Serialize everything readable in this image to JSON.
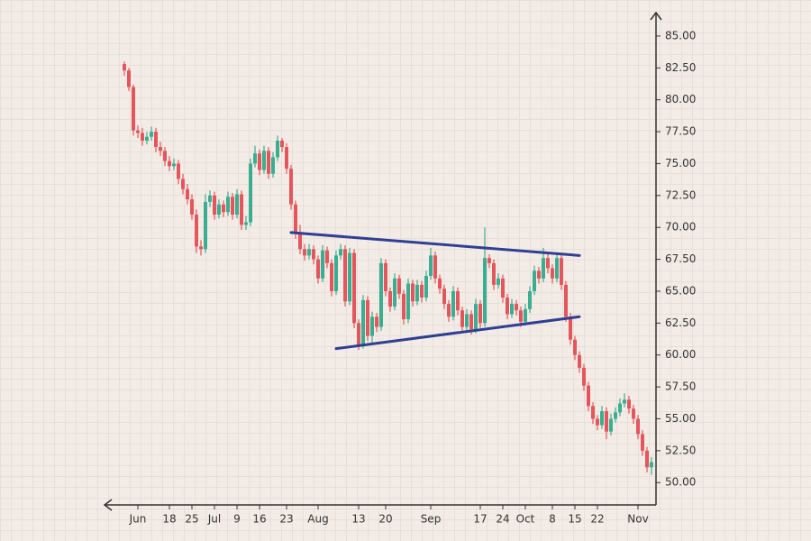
{
  "chart_data": {
    "type": "candlestick",
    "categories": [
      null,
      null,
      null,
      "Jun",
      null,
      null,
      null,
      null,
      null,
      null,
      "18",
      null,
      null,
      null,
      null,
      "25",
      null,
      null,
      null,
      null,
      "Jul",
      null,
      null,
      null,
      null,
      "9",
      null,
      null,
      null,
      null,
      "16",
      null,
      null,
      null,
      null,
      null,
      "23",
      null,
      null,
      null,
      null,
      null,
      null,
      "Aug",
      null,
      null,
      null,
      null,
      null,
      null,
      null,
      null,
      "13",
      null,
      null,
      null,
      null,
      null,
      "20",
      null,
      null,
      null,
      null,
      null,
      null,
      null,
      null,
      null,
      "Sep",
      null,
      null,
      null,
      null,
      null,
      null,
      null,
      null,
      null,
      null,
      "17",
      null,
      null,
      null,
      null,
      "24",
      null,
      null,
      null,
      null,
      "Oct",
      null,
      null,
      null,
      null,
      null,
      "8",
      null,
      null,
      null,
      null,
      "15",
      null,
      null,
      null,
      null,
      "22",
      null,
      null,
      null,
      null,
      null,
      null,
      null,
      null,
      "Nov",
      null,
      null,
      null
    ],
    "open": [
      82.8,
      82.3,
      81.0,
      77.6,
      77.4,
      76.8,
      77.1,
      77.5,
      76.3,
      76.0,
      75.2,
      74.8,
      75.0,
      73.8,
      73.0,
      72.2,
      71.0,
      68.5,
      68.3,
      72.0,
      72.5,
      71.0,
      71.8,
      71.2,
      72.4,
      71.0,
      72.6,
      70.2,
      70.4,
      75.0,
      75.8,
      74.5,
      76.0,
      74.2,
      75.5,
      76.8,
      76.3,
      74.6,
      71.8,
      69.5,
      68.3,
      67.8,
      68.3,
      67.5,
      66.0,
      68.2,
      67.2,
      65.0,
      67.8,
      68.3,
      64.2,
      68.0,
      62.5,
      60.8,
      64.3,
      61.5,
      63.0,
      62.2,
      67.2,
      65.0,
      63.8,
      66.0,
      64.8,
      62.8,
      65.6,
      64.2,
      65.5,
      64.5,
      66.2,
      67.8,
      66.0,
      65.2,
      64.0,
      63.0,
      65.0,
      63.5,
      62.2,
      63.2,
      62.0,
      64.0,
      62.5,
      67.6,
      67.2,
      65.5,
      66.0,
      64.5,
      63.2,
      64.0,
      63.5,
      62.6,
      63.6,
      65.0,
      66.6,
      66.0,
      67.6,
      66.8,
      66.0,
      67.6,
      65.5,
      63.0,
      61.2,
      60.0,
      59.0,
      57.6,
      56.0,
      55.0,
      54.5,
      55.6,
      54.0,
      55.0,
      55.5,
      56.2,
      56.5,
      55.8,
      55.0,
      53.8,
      52.5,
      51.2
    ],
    "high": [
      83.0,
      82.5,
      81.2,
      78.0,
      77.8,
      77.5,
      77.9,
      77.8,
      76.7,
      76.3,
      75.6,
      75.4,
      75.3,
      74.2,
      73.4,
      72.6,
      71.4,
      69.0,
      72.6,
      72.9,
      72.8,
      72.2,
      72.1,
      72.8,
      72.7,
      73.0,
      72.9,
      70.9,
      75.4,
      76.4,
      76.1,
      76.4,
      76.3,
      75.9,
      77.2,
      77.0,
      76.6,
      74.9,
      72.1,
      70.2,
      68.7,
      68.7,
      68.6,
      67.8,
      68.6,
      68.5,
      67.5,
      68.2,
      68.7,
      68.6,
      68.4,
      68.3,
      62.8,
      64.7,
      64.6,
      63.4,
      63.3,
      67.6,
      67.5,
      65.3,
      66.4,
      66.3,
      65.1,
      66.0,
      65.9,
      65.9,
      65.8,
      66.6,
      68.4,
      68.1,
      66.3,
      65.5,
      64.3,
      65.4,
      65.3,
      63.8,
      63.6,
      63.5,
      64.4,
      64.3,
      70.0,
      67.9,
      67.5,
      66.4,
      66.3,
      64.8,
      64.4,
      64.3,
      63.8,
      64.0,
      65.4,
      67.0,
      66.9,
      68.4,
      67.9,
      67.1,
      68.0,
      67.9,
      65.8,
      63.3,
      61.5,
      60.3,
      59.3,
      57.9,
      56.3,
      55.3,
      56.0,
      55.9,
      55.4,
      55.9,
      56.6,
      57.0,
      56.8,
      56.1,
      55.3,
      54.1,
      52.8,
      52.0
    ],
    "low": [
      81.9,
      80.7,
      77.2,
      77.0,
      76.4,
      76.5,
      76.8,
      75.9,
      75.6,
      74.8,
      74.4,
      74.5,
      73.4,
      72.6,
      71.8,
      70.6,
      68.0,
      67.8,
      68.0,
      71.6,
      70.6,
      70.7,
      70.8,
      70.9,
      70.6,
      70.7,
      69.8,
      69.8,
      70.1,
      74.7,
      74.1,
      74.2,
      73.8,
      73.9,
      75.2,
      75.9,
      74.2,
      71.4,
      69.1,
      67.9,
      67.4,
      67.5,
      67.1,
      65.6,
      65.7,
      66.8,
      64.6,
      64.7,
      67.5,
      63.8,
      63.9,
      62.1,
      60.4,
      60.5,
      61.1,
      60.8,
      61.8,
      61.9,
      64.6,
      63.4,
      63.5,
      64.4,
      62.4,
      62.5,
      63.8,
      63.9,
      64.1,
      64.2,
      65.9,
      65.6,
      64.8,
      63.6,
      62.6,
      62.7,
      63.1,
      61.8,
      61.9,
      61.6,
      61.7,
      62.1,
      62.2,
      66.8,
      65.1,
      65.2,
      64.1,
      62.8,
      62.9,
      63.1,
      62.2,
      62.3,
      63.3,
      64.7,
      65.6,
      65.7,
      66.4,
      65.6,
      65.7,
      65.1,
      62.6,
      60.8,
      59.6,
      58.6,
      57.2,
      55.6,
      54.6,
      54.1,
      54.2,
      53.4,
      53.7,
      54.7,
      55.2,
      55.9,
      55.4,
      54.6,
      53.4,
      52.1,
      50.8,
      50.6
    ],
    "close": [
      82.3,
      81.0,
      77.6,
      77.4,
      76.8,
      77.1,
      77.5,
      76.3,
      76.0,
      75.2,
      74.8,
      75.0,
      73.8,
      73.0,
      72.2,
      71.0,
      68.5,
      68.3,
      72.0,
      72.5,
      71.0,
      71.8,
      71.2,
      72.4,
      71.0,
      72.6,
      70.2,
      70.4,
      75.0,
      75.8,
      74.5,
      76.0,
      74.2,
      75.5,
      76.8,
      76.3,
      74.6,
      71.8,
      69.5,
      68.3,
      67.8,
      68.3,
      67.5,
      66.0,
      68.2,
      67.2,
      65.0,
      67.8,
      68.3,
      64.2,
      68.0,
      62.5,
      60.8,
      64.3,
      61.5,
      63.0,
      62.2,
      67.2,
      65.0,
      63.8,
      66.0,
      64.8,
      62.8,
      65.6,
      64.2,
      65.5,
      64.5,
      66.2,
      67.8,
      66.0,
      65.2,
      64.0,
      63.0,
      65.0,
      63.5,
      62.2,
      63.2,
      62.0,
      64.0,
      62.5,
      67.6,
      67.2,
      65.5,
      66.0,
      64.5,
      63.2,
      64.0,
      63.5,
      62.6,
      63.6,
      65.0,
      66.6,
      66.0,
      67.6,
      66.8,
      66.0,
      67.6,
      65.5,
      63.0,
      61.2,
      60.0,
      59.0,
      57.6,
      56.0,
      55.0,
      54.5,
      55.6,
      54.0,
      55.0,
      55.5,
      56.2,
      56.5,
      55.8,
      55.0,
      53.8,
      52.5,
      51.2,
      51.6
    ],
    "up_color": "#3aae92",
    "down_color": "#e4565b",
    "trendlines": [
      {
        "from": [
          37,
          69.6
        ],
        "to": [
          101,
          67.8
        ],
        "color": "#2f3f94"
      },
      {
        "from": [
          47,
          60.5
        ],
        "to": [
          101,
          63.0
        ],
        "color": "#2f3f94"
      }
    ],
    "ylim": [
      48.25,
      86.55
    ],
    "yticks": [
      {
        "value": 50,
        "label": "50.00"
      },
      {
        "value": 52.5,
        "label": "52.50"
      },
      {
        "value": 55,
        "label": "55.00"
      },
      {
        "value": 57.5,
        "label": "57.50"
      },
      {
        "value": 60,
        "label": "60.00"
      },
      {
        "value": 62.5,
        "label": "62.50"
      },
      {
        "value": 65,
        "label": "65.00"
      },
      {
        "value": 67.5,
        "label": "67.50"
      },
      {
        "value": 70,
        "label": "70.00"
      },
      {
        "value": 72.5,
        "label": "72.50"
      },
      {
        "value": 75,
        "label": "75.00"
      },
      {
        "value": 77.5,
        "label": "77.50"
      },
      {
        "value": 80,
        "label": "80.00"
      },
      {
        "value": 82.5,
        "label": "82.50"
      },
      {
        "value": 85,
        "label": "85.00"
      }
    ],
    "y_axis_side": "right"
  }
}
